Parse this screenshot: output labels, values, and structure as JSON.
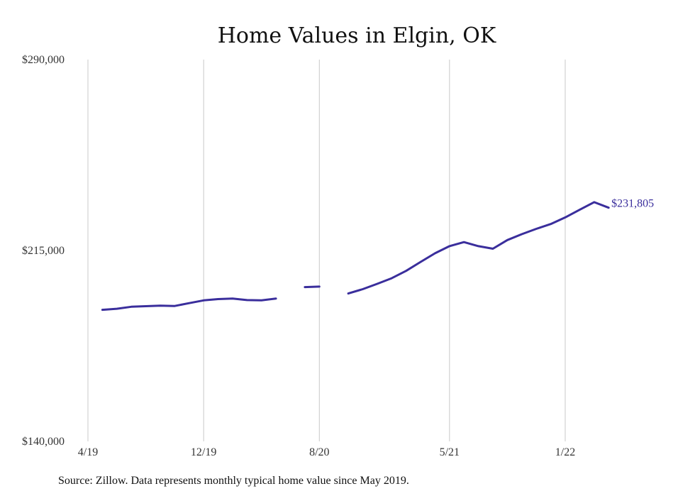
{
  "chart_data": {
    "type": "line",
    "title": "Home Values in Elgin, OK",
    "xlabel": "",
    "ylabel": "",
    "y_tick_labels": [
      "$290,000",
      "$215,000",
      "$140,000"
    ],
    "y_ticks": [
      290000,
      215000,
      140000
    ],
    "ylim": [
      140000,
      290000
    ],
    "x_tick_labels": [
      "4/19",
      "12/19",
      "8/20",
      "5/21",
      "1/22"
    ],
    "x_ticks": [
      "2019-04",
      "2019-12",
      "2020-08",
      "2021-05",
      "2022-01"
    ],
    "grid": "vertical",
    "series": [
      {
        "color": "#3a2e9c",
        "x": [
          "2019-05",
          "2019-06",
          "2019-07",
          "2019-08",
          "2019-09",
          "2019-10",
          "2019-11",
          "2019-12",
          "2020-01",
          "2020-02",
          "2020-03",
          "2020-04",
          "2020-05",
          "2020-06",
          "2020-07",
          "2020-08",
          "2020-09",
          "2020-10",
          "2020-11",
          "2020-12",
          "2021-01",
          "2021-02",
          "2021-03",
          "2021-04",
          "2021-05",
          "2021-06",
          "2021-07",
          "2021-08",
          "2021-09",
          "2021-10",
          "2021-11",
          "2021-12",
          "2022-01",
          "2022-02",
          "2022-03",
          "2022-04"
        ],
        "values": [
          191700,
          192100,
          192900,
          193100,
          193300,
          193200,
          194300,
          195400,
          195900,
          196100,
          195500,
          195400,
          196100,
          null,
          200600,
          200800,
          null,
          198100,
          199800,
          201900,
          204100,
          207000,
          210500,
          213900,
          216700,
          218300,
          216700,
          215700,
          219100,
          221400,
          223500,
          225400,
          228000,
          231000,
          234000,
          231805
        ]
      }
    ],
    "end_label": "$231,805"
  },
  "footer": {
    "source": "Source: Zillow. Data represents monthly typical home value since May 2019."
  }
}
